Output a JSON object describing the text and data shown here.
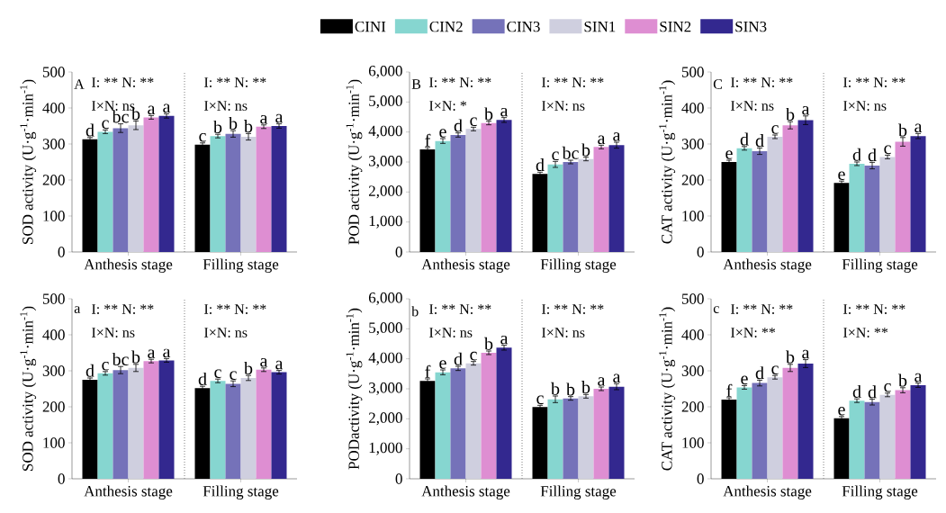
{
  "chart_data": [
    {
      "type": "bar",
      "categories": [
        "Anthesis stage",
        "Filling stage"
      ],
      "ylabel": "SOD activity (U·g$^{-1}$·min$^{-1}$)",
      "ylim": [
        0,
        500
      ],
      "yticks": [
        0,
        100,
        200,
        300,
        400,
        500
      ],
      "legend": "top",
      "series": [
        {
          "name": "CINI",
          "color": "#000000",
          "values": [
            313,
            298
          ],
          "errors": [
            5,
            5
          ],
          "value_labels": [
            "d",
            "c"
          ]
        },
        {
          "name": "CIN2",
          "color": "#86d6d0",
          "values": [
            334,
            322
          ],
          "errors": [
            5,
            5
          ],
          "value_labels": [
            "c",
            "b"
          ]
        },
        {
          "name": "CIN3",
          "color": "#7572b9",
          "values": [
            344,
            328
          ],
          "errors": [
            12,
            9
          ],
          "value_labels": [
            "bc",
            "b"
          ]
        },
        {
          "name": "SIN1",
          "color": "#cfcfdf",
          "values": [
            352,
            320
          ],
          "errors": [
            12,
            9
          ],
          "value_labels": [
            "b",
            "b"
          ]
        },
        {
          "name": "SIN2",
          "color": "#de8ed2",
          "values": [
            374,
            348
          ],
          "errors": [
            5,
            5
          ],
          "value_labels": [
            "a",
            "a"
          ]
        },
        {
          "name": "SIN3",
          "color": "#33288f",
          "values": [
            378,
            350
          ],
          "errors": [
            6,
            6
          ],
          "value_labels": [
            "a",
            "a"
          ]
        }
      ],
      "annotations": [
        "A",
        "I: ** N: **",
        "I×N: ns",
        "I: ** N: **",
        "I×N: ns"
      ]
    },
    {
      "type": "bar",
      "categories": [
        "Anthesis stage",
        "Filling stage"
      ],
      "ylabel": "POD activity (U·g$^{-1}$·min$^{-1}$)",
      "ylim": [
        0,
        6000
      ],
      "yticks": [
        0,
        {
          "value": 1000,
          "label": "1,000"
        },
        {
          "value": 2000,
          "label": "2,000"
        },
        {
          "value": 3000,
          "label": "3,000"
        },
        {
          "value": 4000,
          "label": "4,000"
        },
        {
          "value": 5000,
          "label": "5,000"
        },
        {
          "value": 6000,
          "label": "6,000"
        }
      ],
      "series": [
        {
          "color": "#000000",
          "values": [
            3420,
            2600
          ],
          "errors": [
            60,
            60
          ],
          "value_labels": [
            "f",
            "d"
          ]
        },
        {
          "color": "#86d6d0",
          "values": [
            3700,
            2920
          ],
          "errors": [
            80,
            100
          ],
          "value_labels": [
            "e",
            "c"
          ]
        },
        {
          "color": "#7572b9",
          "values": [
            3900,
            3000
          ],
          "errors": [
            70,
            60
          ],
          "value_labels": [
            "d",
            "bc"
          ]
        },
        {
          "color": "#cfcfdf",
          "values": [
            4100,
            3100
          ],
          "errors": [
            60,
            60
          ],
          "value_labels": [
            "c",
            "b"
          ]
        },
        {
          "color": "#de8ed2",
          "values": [
            4300,
            3500
          ],
          "errors": [
            60,
            60
          ],
          "value_labels": [
            "b",
            "a"
          ]
        },
        {
          "color": "#33288f",
          "values": [
            4400,
            3560
          ],
          "errors": [
            80,
            100
          ],
          "value_labels": [
            "a",
            "a"
          ]
        }
      ],
      "annotations": [
        "B",
        "I: ** N: **",
        "I×N: *",
        "I: ** N: **",
        "I×N: ns"
      ]
    },
    {
      "type": "bar",
      "categories": [
        "Anthesis stage",
        "Filling stage"
      ],
      "ylabel": "CAT activity (U·g$^{-1}$·min$^{-1}$)",
      "ylim": [
        0,
        500
      ],
      "yticks": [
        0,
        100,
        200,
        300,
        400,
        500
      ],
      "series": [
        {
          "color": "#000000",
          "values": [
            250,
            192
          ],
          "errors": [
            5,
            5
          ],
          "value_labels": [
            "e",
            "e"
          ]
        },
        {
          "color": "#86d6d0",
          "values": [
            288,
            245
          ],
          "errors": [
            5,
            5
          ],
          "value_labels": [
            "d",
            "d"
          ]
        },
        {
          "color": "#7572b9",
          "values": [
            280,
            240
          ],
          "errors": [
            9,
            9
          ],
          "value_labels": [
            "d",
            "d"
          ]
        },
        {
          "color": "#cfcfdf",
          "values": [
            320,
            264
          ],
          "errors": [
            5,
            5
          ],
          "value_labels": [
            "c",
            "c"
          ]
        },
        {
          "color": "#de8ed2",
          "values": [
            352,
            306
          ],
          "errors": [
            10,
            12
          ],
          "value_labels": [
            "b",
            "b"
          ]
        },
        {
          "color": "#33288f",
          "values": [
            366,
            322
          ],
          "errors": [
            12,
            7
          ],
          "value_labels": [
            "a",
            "a"
          ]
        }
      ],
      "annotations": [
        "C",
        "I: ** N: **",
        "I×N: ns",
        "I: ** N: **",
        "I×N: ns"
      ]
    },
    {
      "type": "bar",
      "categories": [
        "Anthesis stage",
        "Filling stage"
      ],
      "ylabel": "SOD activity (U·g$^{-1}$·min$^{-1}$)",
      "ylim": [
        0,
        500
      ],
      "yticks": [
        0,
        100,
        200,
        300,
        400,
        500
      ],
      "series": [
        {
          "color": "#000000",
          "values": [
            275,
            252
          ],
          "errors": [
            5,
            5
          ],
          "value_labels": [
            "d",
            "d"
          ]
        },
        {
          "color": "#86d6d0",
          "values": [
            293,
            272
          ],
          "errors": [
            5,
            5
          ],
          "value_labels": [
            "c",
            "c"
          ]
        },
        {
          "color": "#7572b9",
          "values": [
            302,
            264
          ],
          "errors": [
            10,
            8
          ],
          "value_labels": [
            "bc",
            "c"
          ]
        },
        {
          "color": "#cfcfdf",
          "values": [
            308,
            280
          ],
          "errors": [
            10,
            7
          ],
          "value_labels": [
            "b",
            "b"
          ]
        },
        {
          "color": "#de8ed2",
          "values": [
            327,
            303
          ],
          "errors": [
            5,
            5
          ],
          "value_labels": [
            "a",
            "a"
          ]
        },
        {
          "color": "#33288f",
          "values": [
            329,
            296
          ],
          "errors": [
            5,
            5
          ],
          "value_labels": [
            "a",
            "a"
          ]
        }
      ],
      "annotations": [
        "a",
        "I: ** N: **",
        "I×N: ns",
        "I: ** N: **",
        "I×N: ns"
      ]
    },
    {
      "type": "bar",
      "categories": [
        "Anthesis stage",
        "Filling stage"
      ],
      "ylabel": "PODactivity (U·g$^{-1}$·min$^{-1}$)",
      "ylim": [
        0,
        6000
      ],
      "yticks": [
        0,
        {
          "value": 1000,
          "label": "1,000"
        },
        {
          "value": 2000,
          "label": "2,000"
        },
        {
          "value": 3000,
          "label": "3,000"
        },
        {
          "value": 4000,
          "label": "4,000"
        },
        {
          "value": 5000,
          "label": "5,000"
        },
        {
          "value": 6000,
          "label": "6,000"
        }
      ],
      "series": [
        {
          "color": "#000000",
          "values": [
            3260,
            2390
          ],
          "errors": [
            70,
            60
          ],
          "value_labels": [
            "f",
            "c"
          ]
        },
        {
          "color": "#86d6d0",
          "values": [
            3550,
            2650
          ],
          "errors": [
            80,
            110
          ],
          "value_labels": [
            "e",
            "b"
          ]
        },
        {
          "color": "#7572b9",
          "values": [
            3680,
            2680
          ],
          "errors": [
            70,
            60
          ],
          "value_labels": [
            "d",
            "b"
          ]
        },
        {
          "color": "#cfcfdf",
          "values": [
            3850,
            2750
          ],
          "errors": [
            60,
            60
          ],
          "value_labels": [
            "c",
            "b"
          ]
        },
        {
          "color": "#de8ed2",
          "values": [
            4200,
            3000
          ],
          "errors": [
            60,
            60
          ],
          "value_labels": [
            "b",
            "a"
          ]
        },
        {
          "color": "#33288f",
          "values": [
            4370,
            3070
          ],
          "errors": [
            80,
            100
          ],
          "value_labels": [
            "a",
            "a"
          ]
        }
      ],
      "annotations": [
        "b",
        "I: ** N: **",
        "I×N: ns",
        "I: ** N: **",
        "I×N: ns"
      ]
    },
    {
      "type": "bar",
      "categories": [
        "Anthesis stage",
        "Filling stage"
      ],
      "ylabel": "CAT activity (U·g$^{-1}$·min$^{-1}$)",
      "ylim": [
        0,
        500
      ],
      "yticks": [
        0,
        100,
        200,
        300,
        400,
        500
      ],
      "series": [
        {
          "color": "#000000",
          "values": [
            220,
            168
          ],
          "errors": [
            5,
            5
          ],
          "value_labels": [
            "f",
            "e"
          ]
        },
        {
          "color": "#86d6d0",
          "values": [
            254,
            217
          ],
          "errors": [
            5,
            5
          ],
          "value_labels": [
            "e",
            "d"
          ]
        },
        {
          "color": "#7572b9",
          "values": [
            266,
            213
          ],
          "errors": [
            8,
            8
          ],
          "value_labels": [
            "d",
            "d"
          ]
        },
        {
          "color": "#cfcfdf",
          "values": [
            282,
            233
          ],
          "errors": [
            5,
            5
          ],
          "value_labels": [
            "c",
            "c"
          ]
        },
        {
          "color": "#de8ed2",
          "values": [
            308,
            246
          ],
          "errors": [
            10,
            7
          ],
          "value_labels": [
            "b",
            "b"
          ]
        },
        {
          "color": "#33288f",
          "values": [
            320,
            260
          ],
          "errors": [
            11,
            6
          ],
          "value_labels": [
            "a",
            "a"
          ]
        }
      ],
      "annotations": [
        "c",
        "I: ** N: **",
        "I×N: **",
        "I: ** N: **",
        "I×N: **"
      ]
    }
  ]
}
